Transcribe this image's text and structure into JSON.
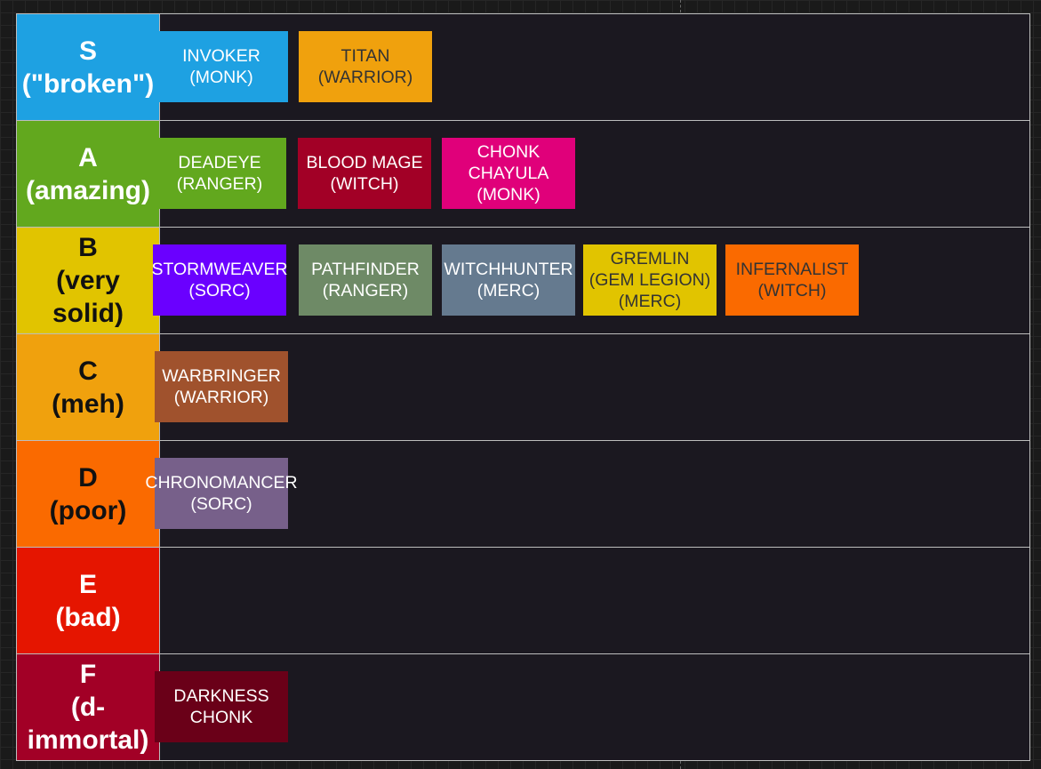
{
  "tiers": [
    {
      "label": "S\n(\"broken\")",
      "color": "#1ea1e2",
      "text_color": "#ffffff",
      "items": [
        {
          "text": "INVOKER\n(MONK)",
          "bg": "#1ea1e2",
          "fg": "#ffffff"
        },
        {
          "text": "TITAN\n(WARRIOR)",
          "bg": "#f0a10d",
          "fg": "#333333"
        }
      ]
    },
    {
      "label": "A\n(amazing)",
      "color": "#62a81e",
      "text_color": "#ffffff",
      "items": [
        {
          "text": "DEADEYE\n(RANGER)",
          "bg": "#62a81e",
          "fg": "#ffffff"
        },
        {
          "text": "BLOOD MAGE\n(WITCH)",
          "bg": "#a20026",
          "fg": "#ffffff"
        },
        {
          "text": "CHONK\nCHAYULA\n(MONK)",
          "bg": "#e0007a",
          "fg": "#ffffff"
        }
      ]
    },
    {
      "label": "B\n(very\nsolid)",
      "color": "#e1c400",
      "text_color": "#111111",
      "items": [
        {
          "text": "STORMWEAVER\n(SORC)",
          "bg": "#6a00ff",
          "fg": "#ffffff"
        },
        {
          "text": "PATHFINDER\n(RANGER)",
          "bg": "#6e8a66",
          "fg": "#ffffff"
        },
        {
          "text": "WITCHHUNTER\n(MERC)",
          "bg": "#657a8f",
          "fg": "#ffffff"
        },
        {
          "text": "GREMLIN\n(GEM LEGION)\n(MERC)",
          "bg": "#e1c400",
          "fg": "#333333"
        },
        {
          "text": "INFERNALIST\n(WITCH)",
          "bg": "#fa6a00",
          "fg": "#333333"
        }
      ]
    },
    {
      "label": "C\n(meh)",
      "color": "#f0a10d",
      "text_color": "#111111",
      "items": [
        {
          "text": "WARBRINGER\n(WARRIOR)",
          "bg": "#a0522d",
          "fg": "#ffffff"
        }
      ]
    },
    {
      "label": "D\n(poor)",
      "color": "#fa6a00",
      "text_color": "#111111",
      "items": [
        {
          "text": "CHRONOMANCER\n(SORC)",
          "bg": "#77608a",
          "fg": "#ffffff"
        }
      ]
    },
    {
      "label": "E\n(bad)",
      "color": "#e51500",
      "text_color": "#ffffff",
      "items": []
    },
    {
      "label": "F\n(d-\nimmortal)",
      "color": "#a20026",
      "text_color": "#ffffff",
      "items": [
        {
          "text": "DARKNESS\nCHONK",
          "bg": "#6a0018",
          "fg": "#ffffff"
        }
      ]
    }
  ]
}
